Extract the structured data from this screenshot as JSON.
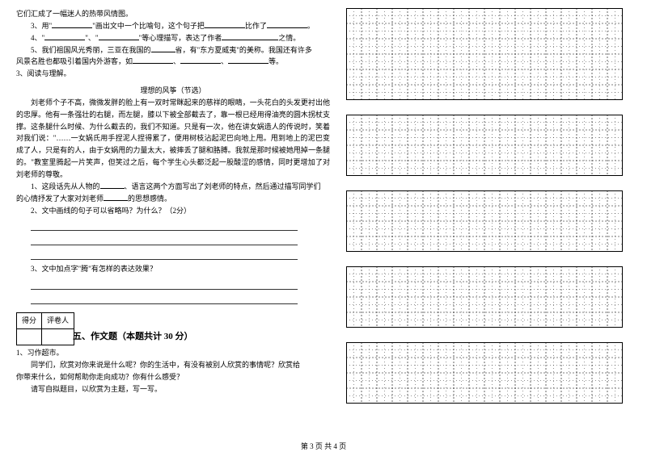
{
  "left": {
    "intro": "它们汇成了一幅迷人的热带风情图。",
    "q3": {
      "prefix": "3、用\"",
      "mid1": "\"画出文中一个比喻句，这个句子把",
      "mid2": "比作了",
      "end": "。"
    },
    "q4": {
      "prefix": "4、\"",
      "mid1": "\"、\"",
      "mid2": "\"等心理描写，表达了作者",
      "end": "之情。"
    },
    "q5": {
      "line1_a": "5、我们祖国风光秀丽，三亚在我国的",
      "line1_b": "省，有\"东方夏威夷\"的美称。我国还有许多",
      "line2_a": "风景名胜也都吸引着国内外游客，如",
      "line2_b": "、",
      "line2_c": "、",
      "line2_d": "等。"
    },
    "read_label": "3、阅读与理解。",
    "passage_title": "理想的风筝（节选）",
    "p1": "刘老师个子不高，微微发胖的脸上有一双时常眯起来的慈祥的眼睛，一头花白的头发更衬出他的忠厚。他有一条强壮的右腿，而左腿，膝以下被全部截去了，靠一根已经用得油亮的圆木拐杖支撑。这条腿什么时候、为什么截去的，我们不知道。只是有一次，他在讲女娲造人的传说时，笑着对我们说：\"……一女娲氏用手捏泥人捏得累了，便用树枝沾起泥巴向地上甩。甩到地上的泥巴变成了人，只是有的人，由于女娲甩的力量太大，被摔丢了腿和胳膊。我就是那时候被她甩掉一条腿的。\"教室里腾起一片笑声，但笑过之后，每个学生心头都泛起一股酸涩的感情，同时更增加了对刘老师的尊敬。",
    "sq1_a": "1、这段话先从人物的",
    "sq1_b": "、语言这两个方面写出了刘老师的特点，然后通过描写同学们",
    "sq1_c": "的心情抒发了大家对刘老师",
    "sq1_d": "的思想感情。",
    "sq2": "2、文中画线的句子可以省略吗？为什么？（2分）",
    "sq3": "3、文中加点字\"腾\"有怎样的表达效果？",
    "table": {
      "col1": "得分",
      "col2": "评卷人"
    },
    "section": "五、作文题（本题共计 30 分）",
    "comp_label": "1、习作超市。",
    "comp_p1": "同学们，欣赏对你来说是什么呢？你的生活中，有没有被别人欣赏的事情呢？欣赏给",
    "comp_p2": "你带来什么，如何帮助你走向成功？你有什么感受？",
    "comp_p3": "请写自拟题目，以欣赏为主题，写一写。"
  },
  "grid": {
    "rows": 4,
    "cols": 18,
    "block_rows": [
      6,
      4,
      4,
      4,
      4
    ],
    "cell": 19,
    "stroke": "#000000",
    "dash": "2,2",
    "strokeWidth": 0.6
  },
  "footer": {
    "prefix": "第 3 页  共 4 页"
  }
}
